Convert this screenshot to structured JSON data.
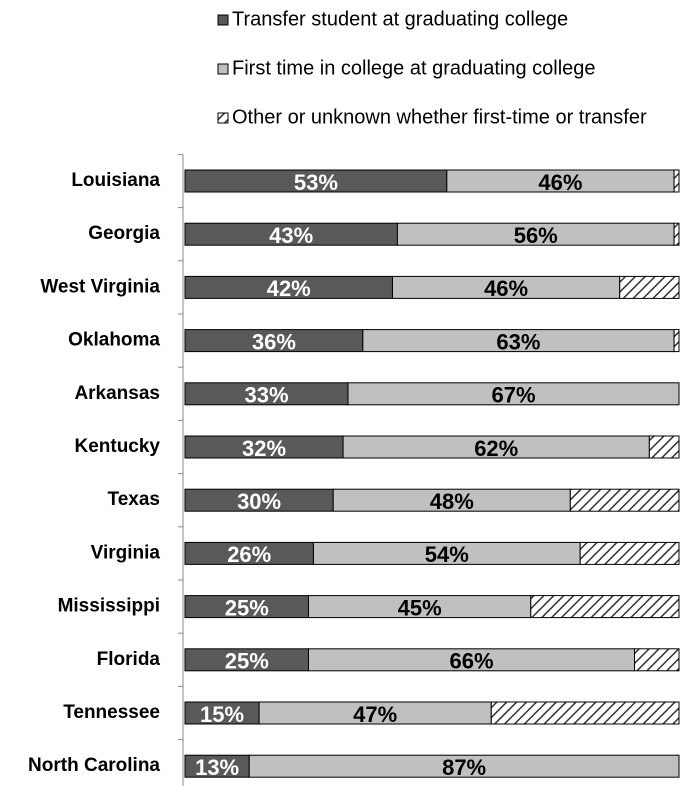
{
  "chart_data": {
    "type": "stacked-bar-horizontal",
    "categories": [
      "Louisiana",
      "Georgia",
      "West Virginia",
      "Oklahoma",
      "Arkansas",
      "Kentucky",
      "Texas",
      "Virginia",
      "Mississippi",
      "Florida",
      "Tennessee",
      "North Carolina"
    ],
    "series": [
      {
        "name": "Transfer student at graduating college",
        "color": "#595959",
        "values": [
          53,
          43,
          42,
          36,
          33,
          32,
          30,
          26,
          25,
          25,
          15,
          13
        ],
        "value_labels": [
          "53%",
          "43%",
          "42%",
          "36%",
          "33%",
          "32%",
          "30%",
          "26%",
          "25%",
          "25%",
          "15%",
          "13%"
        ]
      },
      {
        "name": "First time in college at graduating college",
        "color": "#c0c0c0",
        "values": [
          46,
          56,
          46,
          63,
          67,
          62,
          48,
          54,
          45,
          66,
          47,
          87
        ],
        "value_labels": [
          "46%",
          "56%",
          "46%",
          "63%",
          "67%",
          "62%",
          "48%",
          "54%",
          "45%",
          "66%",
          "47%",
          "87%"
        ]
      },
      {
        "name": "Other or unknown whether first-time or transfer",
        "color": "#333333",
        "pattern": "hatch",
        "values": [
          1,
          1,
          12,
          1,
          0,
          6,
          22,
          20,
          30,
          9,
          38,
          0
        ]
      }
    ],
    "xlim": [
      0,
      100
    ]
  }
}
